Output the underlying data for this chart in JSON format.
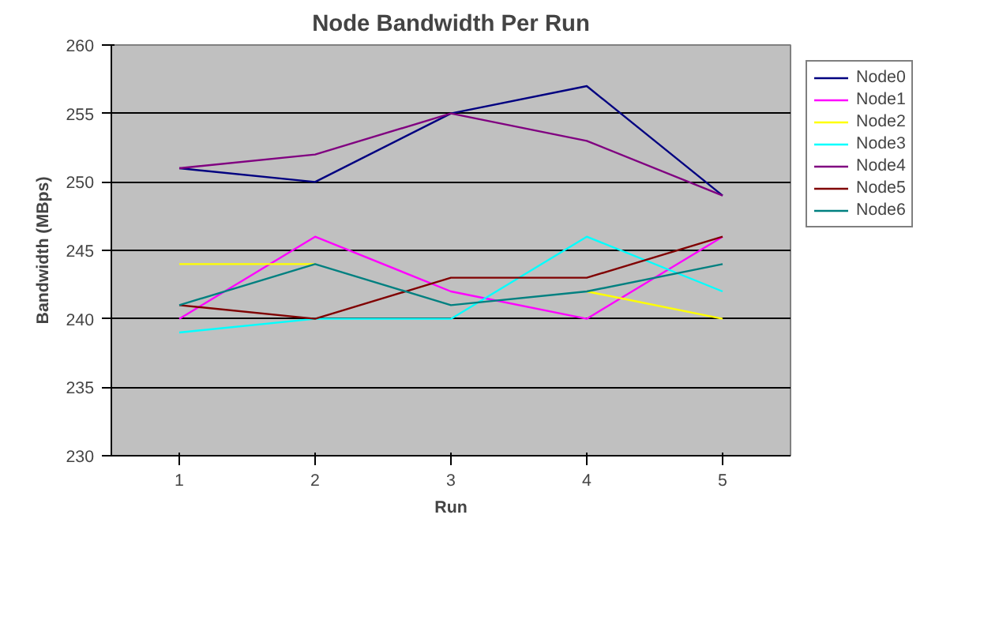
{
  "chart_data": {
    "type": "line",
    "title": "Node Bandwidth Per Run",
    "xlabel": "Run",
    "ylabel": "Bandwidth (MBps)",
    "categories": [
      "1",
      "2",
      "3",
      "4",
      "5"
    ],
    "series": [
      {
        "name": "Node0",
        "color": "#000080",
        "values": [
          251,
          250,
          255,
          257,
          249
        ]
      },
      {
        "name": "Node1",
        "color": "#ff00ff",
        "values": [
          240,
          246,
          242,
          240,
          246
        ]
      },
      {
        "name": "Node2",
        "color": "#ffff00",
        "values": [
          244,
          244,
          null,
          242,
          240
        ]
      },
      {
        "name": "Node3",
        "color": "#00ffff",
        "values": [
          239,
          240,
          240,
          246,
          242
        ]
      },
      {
        "name": "Node4",
        "color": "#800080",
        "values": [
          251,
          252,
          255,
          253,
          249
        ]
      },
      {
        "name": "Node5",
        "color": "#800000",
        "values": [
          241,
          240,
          243,
          243,
          246
        ]
      },
      {
        "name": "Node6",
        "color": "#008080",
        "values": [
          241,
          244,
          241,
          242,
          244
        ]
      }
    ],
    "ylim": [
      230,
      260
    ],
    "yticks": [
      230,
      235,
      240,
      245,
      250,
      255,
      260
    ],
    "grid": "y",
    "legend": "right",
    "marker": "none",
    "line_style": "solid"
  }
}
